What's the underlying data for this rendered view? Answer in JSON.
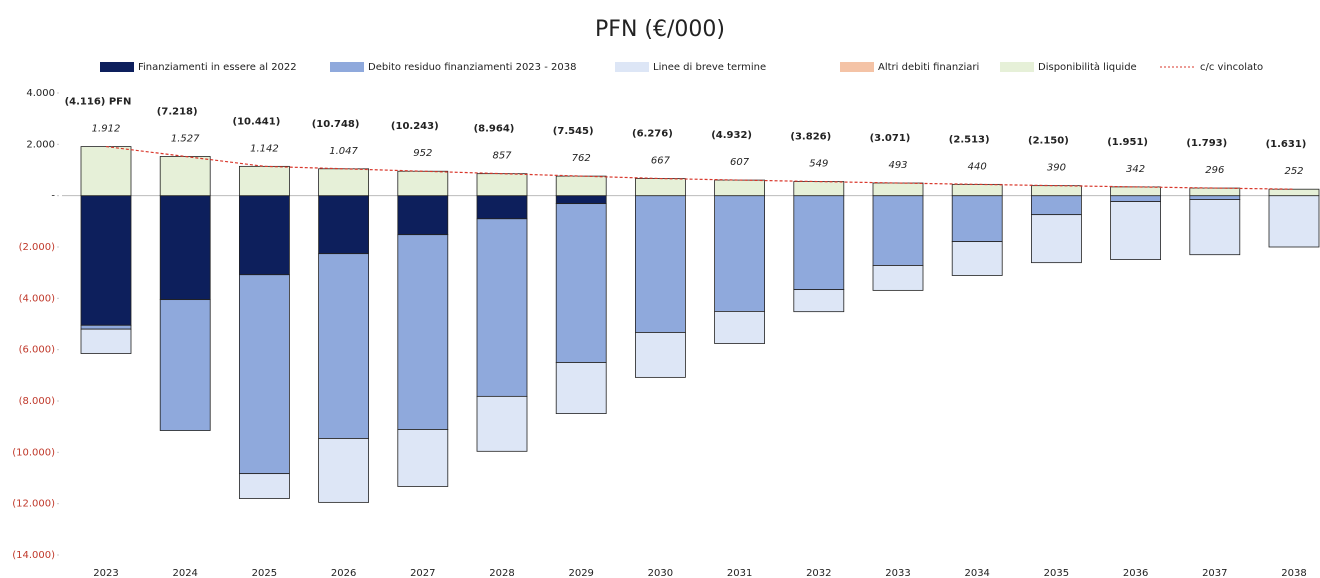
{
  "chart_data": {
    "type": "bar",
    "title": "PFN (€/000)",
    "categories": [
      "2023",
      "2024",
      "2025",
      "2026",
      "2027",
      "2028",
      "2029",
      "2030",
      "2031",
      "2032",
      "2033",
      "2034",
      "2035",
      "2036",
      "2037",
      "2038"
    ],
    "series": [
      {
        "name": "Finanziamenti in essere al 2022",
        "color": "#0d1f5c",
        "values": [
          -5050,
          -4050,
          -3080,
          -2260,
          -1520,
          -900,
          -310,
          0,
          0,
          0,
          0,
          0,
          0,
          0,
          0,
          0
        ]
      },
      {
        "name": "Debito residuo finanziamenti 2023 - 2038",
        "color": "#8fa9dc",
        "values": [
          -150,
          -5100,
          -7750,
          -7200,
          -7590,
          -6920,
          -6190,
          -5330,
          -4510,
          -3660,
          -2720,
          -1790,
          -740,
          -230,
          -150,
          0
        ]
      },
      {
        "name": "Linee di breve termine",
        "color": "#dde6f6",
        "values": [
          -950,
          0,
          -970,
          -2490,
          -2220,
          -2140,
          -1990,
          -1750,
          -1250,
          -860,
          -970,
          -1320,
          -1870,
          -2260,
          -2150,
          -2000
        ]
      },
      {
        "name": "Altri debiti finanziari",
        "color": "#f4c3a6",
        "values": [
          0,
          0,
          0,
          0,
          0,
          0,
          0,
          0,
          0,
          0,
          0,
          0,
          0,
          0,
          0,
          0
        ]
      },
      {
        "name": "Disponibilità liquide",
        "color": "#e6f0d8",
        "values": [
          1912,
          1527,
          1142,
          1047,
          952,
          857,
          762,
          667,
          607,
          549,
          493,
          440,
          390,
          342,
          296,
          252
        ],
        "value_labels": [
          "1.912",
          "1.527",
          "1.142",
          "1.047",
          "952",
          "857",
          "762",
          "667",
          "607",
          "549",
          "493",
          "440",
          "390",
          "342",
          "296",
          "252"
        ]
      },
      {
        "name": "c/c vincolato",
        "type": "line",
        "color": "#d9372b",
        "values": [
          1912,
          1527,
          1142,
          1047,
          952,
          857,
          762,
          667,
          607,
          549,
          493,
          440,
          390,
          342,
          296,
          252
        ]
      }
    ],
    "annotations": [
      "(4.116) PFN",
      "(7.218)",
      "(10.441)",
      "(10.748)",
      "(10.243)",
      "(8.964)",
      "(7.545)",
      "(6.276)",
      "(4.932)",
      "(3.826)",
      "(3.071)",
      "(2.513)",
      "(2.150)",
      "(1.951)",
      "(1.793)",
      "(1.631)"
    ],
    "ylim": [
      -14000,
      4000
    ],
    "yticks": [
      {
        "value": 4000,
        "label": "4.000"
      },
      {
        "value": 2000,
        "label": "2.000"
      },
      {
        "value": 0,
        "label": "-"
      },
      {
        "value": -2000,
        "label": "(2.000)"
      },
      {
        "value": -4000,
        "label": "(4.000)"
      },
      {
        "value": -6000,
        "label": "(6.000)"
      },
      {
        "value": -8000,
        "label": "(8.000)"
      },
      {
        "value": -10000,
        "label": "(10.000)"
      },
      {
        "value": -12000,
        "label": "(12.000)"
      },
      {
        "value": -14000,
        "label": "(14.000)"
      }
    ],
    "legend": "top"
  }
}
